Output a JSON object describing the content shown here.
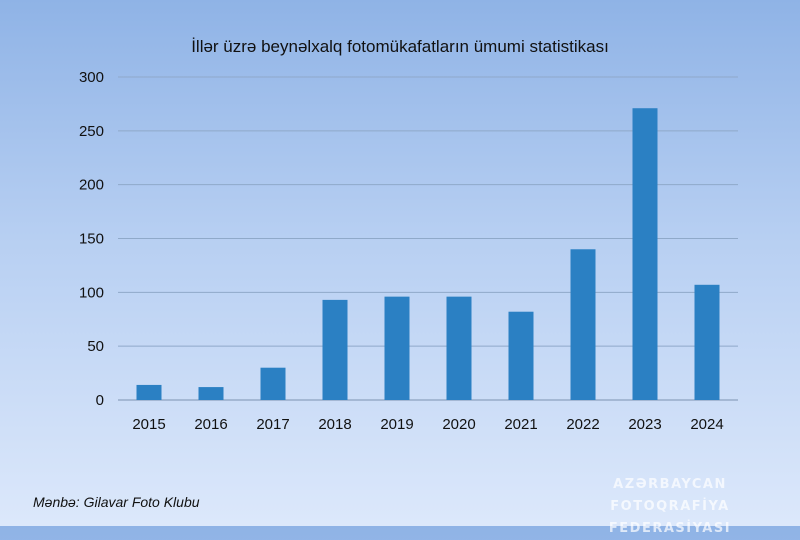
{
  "chart_data": {
    "type": "bar",
    "title": "İllər üzrə beynəlxalq fotomükafatların ümumi statistikası",
    "categories": [
      "2015",
      "2016",
      "2017",
      "2018",
      "2019",
      "2020",
      "2021",
      "2022",
      "2023",
      "2024"
    ],
    "values": [
      14,
      12,
      30,
      93,
      96,
      96,
      82,
      140,
      271,
      107
    ],
    "ylim": [
      0,
      300
    ],
    "yticks": [
      0,
      50,
      100,
      150,
      200,
      250,
      300
    ],
    "grid": true,
    "bar_color": "#2b80c3"
  },
  "source_note": "Mənbə: Gilavar Foto Klubu",
  "watermark": {
    "line1": "AZƏRBAYCAN FOTOQRAFİYA",
    "line2": "FEDERASİYASI"
  }
}
